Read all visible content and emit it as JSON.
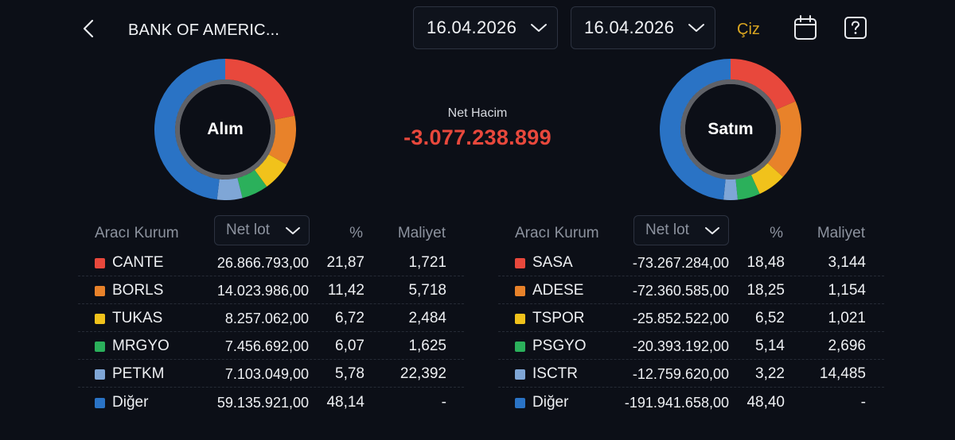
{
  "header": {
    "title": "BANK OF AMERIC...",
    "start_date": "16.04.2026",
    "end_date": "16.04.2026",
    "draw_label": "Çiz",
    "icons": [
      "chevron-left-icon",
      "chevron-down-icon",
      "calendar-icon",
      "help-icon"
    ]
  },
  "summary": {
    "buy_label": "Alım",
    "sell_label": "Satım",
    "net_label": "Net Hacim",
    "net_value": "-3.077.238.899"
  },
  "colors": {
    "red": "#e8483c",
    "orange": "#e8822a",
    "yellow": "#f1c21b",
    "green": "#2bb05b",
    "lightblue": "#7fa6d6",
    "blue": "#2a73c5",
    "accent": "#d9a521"
  },
  "buy": {
    "headers": {
      "broker": "Aracı Kurum",
      "sort": "Net lot",
      "pct": "%",
      "cost": "Maliyet"
    },
    "rows": [
      {
        "name": "CANTE",
        "lot": "26.866.793,00",
        "pct": "21,87",
        "cost": "1,721",
        "color": "#e8483c"
      },
      {
        "name": "BORLS",
        "lot": "14.023.986,00",
        "pct": "11,42",
        "cost": "5,718",
        "color": "#e8822a"
      },
      {
        "name": "TUKAS",
        "lot": "8.257.062,00",
        "pct": "6,72",
        "cost": "2,484",
        "color": "#f1c21b"
      },
      {
        "name": "MRGYO",
        "lot": "7.456.692,00",
        "pct": "6,07",
        "cost": "1,625",
        "color": "#2bb05b"
      },
      {
        "name": "PETKM",
        "lot": "7.103.049,00",
        "pct": "5,78",
        "cost": "22,392",
        "color": "#7fa6d6"
      },
      {
        "name": "Diğer",
        "lot": "59.135.921,00",
        "pct": "48,14",
        "cost": "-",
        "color": "#2a73c5"
      }
    ]
  },
  "sell": {
    "headers": {
      "broker": "Aracı Kurum",
      "sort": "Net lot",
      "pct": "%",
      "cost": "Maliyet"
    },
    "rows": [
      {
        "name": "SASA",
        "lot": "-73.267.284,00",
        "pct": "18,48",
        "cost": "3,144",
        "color": "#e8483c"
      },
      {
        "name": "ADESE",
        "lot": "-72.360.585,00",
        "pct": "18,25",
        "cost": "1,154",
        "color": "#e8822a"
      },
      {
        "name": "TSPOR",
        "lot": "-25.852.522,00",
        "pct": "6,52",
        "cost": "1,021",
        "color": "#f1c21b"
      },
      {
        "name": "PSGYO",
        "lot": "-20.393.192,00",
        "pct": "5,14",
        "cost": "2,696",
        "color": "#2bb05b"
      },
      {
        "name": "ISCTR",
        "lot": "-12.759.620,00",
        "pct": "3,22",
        "cost": "14,485",
        "color": "#7fa6d6"
      },
      {
        "name": "Diğer",
        "lot": "-191.941.658,00",
        "pct": "48,40",
        "cost": "-",
        "color": "#2a73c5"
      }
    ]
  },
  "chart_data": [
    {
      "type": "pie",
      "title": "Alım",
      "categories": [
        "CANTE",
        "BORLS",
        "TUKAS",
        "MRGYO",
        "PETKM",
        "Diğer"
      ],
      "values": [
        21.87,
        11.42,
        6.72,
        6.07,
        5.78,
        48.14
      ]
    },
    {
      "type": "pie",
      "title": "Satım",
      "categories": [
        "SASA",
        "ADESE",
        "TSPOR",
        "PSGYO",
        "ISCTR",
        "Diğer"
      ],
      "values": [
        18.48,
        18.25,
        6.52,
        5.14,
        3.22,
        48.4
      ]
    }
  ]
}
